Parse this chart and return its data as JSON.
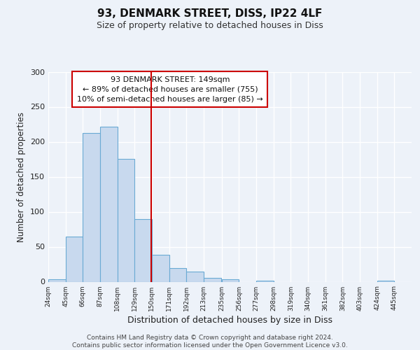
{
  "title": "93, DENMARK STREET, DISS, IP22 4LF",
  "subtitle": "Size of property relative to detached houses in Diss",
  "xlabel": "Distribution of detached houses by size in Diss",
  "ylabel": "Number of detached properties",
  "bar_color": "#c8d9ee",
  "bar_edge_color": "#6aaad4",
  "bin_labels": [
    "24sqm",
    "45sqm",
    "66sqm",
    "87sqm",
    "108sqm",
    "129sqm",
    "150sqm",
    "171sqm",
    "192sqm",
    "213sqm",
    "235sqm",
    "256sqm",
    "277sqm",
    "298sqm",
    "319sqm",
    "340sqm",
    "361sqm",
    "382sqm",
    "403sqm",
    "424sqm",
    "445sqm"
  ],
  "bar_values": [
    4,
    65,
    213,
    222,
    176,
    90,
    39,
    20,
    15,
    6,
    4,
    0,
    2,
    0,
    0,
    0,
    0,
    0,
    0,
    2,
    0
  ],
  "bin_edges": [
    24,
    45,
    66,
    87,
    108,
    129,
    150,
    171,
    192,
    213,
    235,
    256,
    277,
    298,
    319,
    340,
    361,
    382,
    403,
    424,
    445
  ],
  "bin_width": 21,
  "vline_x": 149,
  "vline_color": "#cc0000",
  "ylim": [
    0,
    300
  ],
  "yticks": [
    0,
    50,
    100,
    150,
    200,
    250,
    300
  ],
  "annotation_line1": "93 DENMARK STREET: 149sqm",
  "annotation_line2": "← 89% of detached houses are smaller (755)",
  "annotation_line3": "10% of semi-detached houses are larger (85) →",
  "annotation_border_color": "#cc0000",
  "footer_line1": "Contains HM Land Registry data © Crown copyright and database right 2024.",
  "footer_line2": "Contains public sector information licensed under the Open Government Licence v3.0.",
  "background_color": "#edf2f9",
  "grid_color": "#ffffff"
}
